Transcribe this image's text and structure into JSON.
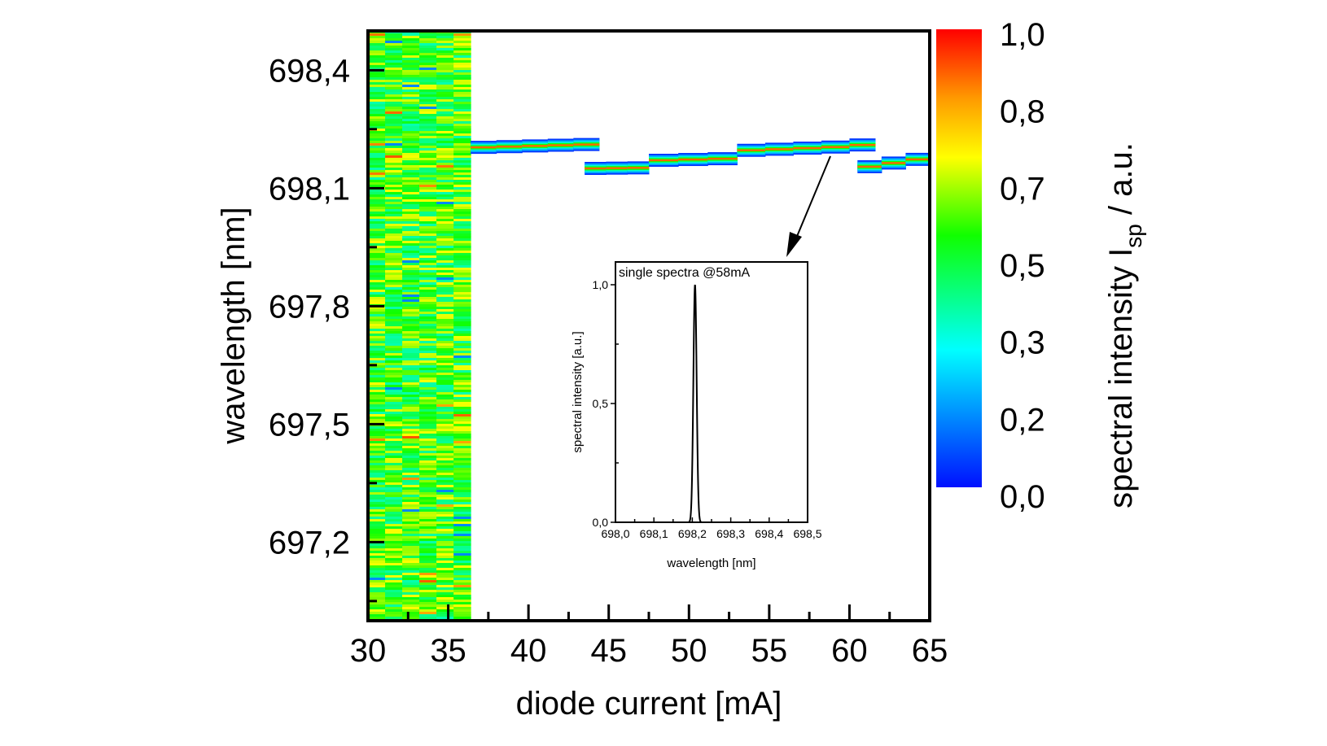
{
  "chart_data": {
    "type": "heatmap",
    "xlabel": "diode current [mA]",
    "ylabel": "wavelength [nm]",
    "xlim": [
      30,
      65
    ],
    "ylim": [
      697.0,
      698.5
    ],
    "x_ticks": [
      "30",
      "35",
      "40",
      "45",
      "50",
      "55",
      "60",
      "65"
    ],
    "x_tick_values": [
      30,
      35,
      40,
      45,
      50,
      55,
      60,
      65
    ],
    "y_ticks": [
      "697,2",
      "697,5",
      "697,8",
      "698,1",
      "698,4"
    ],
    "y_tick_values": [
      697.2,
      697.5,
      697.8,
      698.1,
      698.4
    ],
    "colorbar": {
      "label_main": "spectral intensity I",
      "label_sub": "sp",
      "label_unit": " / a.u.",
      "ticks": [
        "0,0",
        "0,2",
        "0,3",
        "0,5",
        "0,7",
        "0,8",
        "1,0"
      ],
      "range": [
        0.0,
        1.0
      ],
      "colors": [
        "#0000ff",
        "#00ffff",
        "#00ff00",
        "#ffff00",
        "#ff0000"
      ]
    },
    "noise_region": {
      "x_range": [
        30,
        36.4
      ],
      "y_range": [
        697.0,
        698.5
      ],
      "mean_intensity": 0.55
    },
    "mode_segments": [
      {
        "x_start": 36.4,
        "x_end": 44.4,
        "lambda_start": 698.203,
        "lambda_end": 698.212
      },
      {
        "x_start": 43.5,
        "x_end": 47.5,
        "lambda_start": 698.15,
        "lambda_end": 698.152
      },
      {
        "x_start": 47.5,
        "x_end": 53.0,
        "lambda_start": 698.17,
        "lambda_end": 698.176
      },
      {
        "x_start": 53.0,
        "x_end": 60.0,
        "lambda_start": 698.195,
        "lambda_end": 698.206
      },
      {
        "x_start": 60.0,
        "x_end": 61.6,
        "lambda_start": 698.21,
        "lambda_end": 698.21
      },
      {
        "x_start": 60.5,
        "x_end": 65.0,
        "lambda_start": 698.15,
        "lambda_end": 698.178
      }
    ],
    "inset": {
      "type": "line",
      "title": "single spectra @58mA",
      "xlabel": "wavelength [nm]",
      "ylabel": "spectral intensity [a.u.]",
      "xlim": [
        698.0,
        698.5
      ],
      "ylim": [
        0.0,
        1.0
      ],
      "x_ticks": [
        "698,0",
        "698,1",
        "698,2",
        "698,3",
        "698,4",
        "698,5"
      ],
      "x_tick_values": [
        698.0,
        698.1,
        698.2,
        698.3,
        698.4,
        698.5
      ],
      "y_ticks": [
        "0,0",
        "0,5",
        "1,0"
      ],
      "y_tick_values": [
        0.0,
        0.5,
        1.0
      ],
      "peak_center": 698.207,
      "peak_width": 0.006,
      "peak_value": 1.0
    }
  }
}
